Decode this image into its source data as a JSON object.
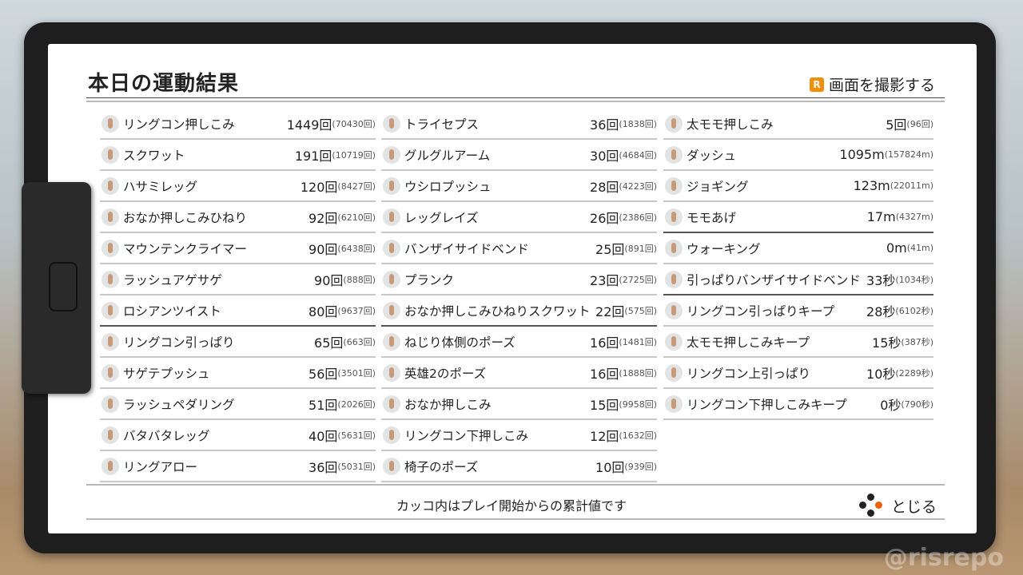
{
  "title": "本日の運動結果",
  "screenshot_button": {
    "key": "R",
    "label": "画面を撮影する"
  },
  "columns": [
    [
      {
        "name": "リングコン押しこみ",
        "value": "1449回",
        "total": "(70430回)"
      },
      {
        "name": "スクワット",
        "value": "191回",
        "total": "(10719回)"
      },
      {
        "name": "ハサミレッグ",
        "value": "120回",
        "total": "(8427回)"
      },
      {
        "name": "おなか押しこみひねり",
        "value": "92回",
        "total": "(6210回)"
      },
      {
        "name": "マウンテンクライマー",
        "value": "90回",
        "total": "(6438回)"
      },
      {
        "name": "ラッシュアゲサゲ",
        "value": "90回",
        "total": "(888回)"
      },
      {
        "name": "ロシアンツイスト",
        "value": "80回",
        "total": "(9637回)",
        "strong_divider": true
      },
      {
        "name": "リングコン引っぱり",
        "value": "65回",
        "total": "(663回)"
      },
      {
        "name": "サゲテプッシュ",
        "value": "56回",
        "total": "(3501回)"
      },
      {
        "name": "ラッシュペダリング",
        "value": "51回",
        "total": "(2026回)"
      },
      {
        "name": "バタバタレッグ",
        "value": "40回",
        "total": "(5631回)"
      },
      {
        "name": "リングアロー",
        "value": "36回",
        "total": "(5031回)"
      }
    ],
    [
      {
        "name": "トライセプス",
        "value": "36回",
        "total": "(1838回)"
      },
      {
        "name": "グルグルアーム",
        "value": "30回",
        "total": "(4684回)"
      },
      {
        "name": "ウシロプッシュ",
        "value": "28回",
        "total": "(4223回)"
      },
      {
        "name": "レッグレイズ",
        "value": "26回",
        "total": "(2386回)"
      },
      {
        "name": "バンザイサイドベンド",
        "value": "25回",
        "total": "(891回)"
      },
      {
        "name": "プランク",
        "value": "23回",
        "total": "(2725回)"
      },
      {
        "name": "おなか押しこみひねりスクワット",
        "value": "22回",
        "total": "(575回)",
        "strong_divider": true
      },
      {
        "name": "ねじり体側のポーズ",
        "value": "16回",
        "total": "(1481回)"
      },
      {
        "name": "英雄2のポーズ",
        "value": "16回",
        "total": "(1888回)"
      },
      {
        "name": "おなか押しこみ",
        "value": "15回",
        "total": "(9958回)"
      },
      {
        "name": "リングコン下押しこみ",
        "value": "12回",
        "total": "(1632回)"
      },
      {
        "name": "椅子のポーズ",
        "value": "10回",
        "total": "(939回)"
      }
    ],
    [
      {
        "name": "太モモ押しこみ",
        "value": "5回",
        "total": "(96回)"
      },
      {
        "name": "ダッシュ",
        "value": "1095m",
        "total": "(157824m)"
      },
      {
        "name": "ジョギング",
        "value": "123m",
        "total": "(22011m)"
      },
      {
        "name": "モモあげ",
        "value": "17m",
        "total": "(4327m)",
        "strong_divider": true
      },
      {
        "name": "ウォーキング",
        "value": "0m",
        "total": "(41m)"
      },
      {
        "name": "引っぱりバンザイサイドベンド",
        "value": "33秒",
        "total": "(1034秒)",
        "strong_divider": true
      },
      {
        "name": "リングコン引っぱりキープ",
        "value": "28秒",
        "total": "(6102秒)"
      },
      {
        "name": "太モモ押しこみキープ",
        "value": "15秒",
        "total": "(387秒)"
      },
      {
        "name": "リングコン上引っぱり",
        "value": "10秒",
        "total": "(2289秒)"
      },
      {
        "name": "リングコン下押しこみキープ",
        "value": "0秒",
        "total": "(790秒)"
      }
    ]
  ],
  "footer_note": "カッコ内はプレイ開始からの累計値です",
  "close_label": "とじる",
  "watermark": "@risrepo",
  "accent": "#f0900a"
}
